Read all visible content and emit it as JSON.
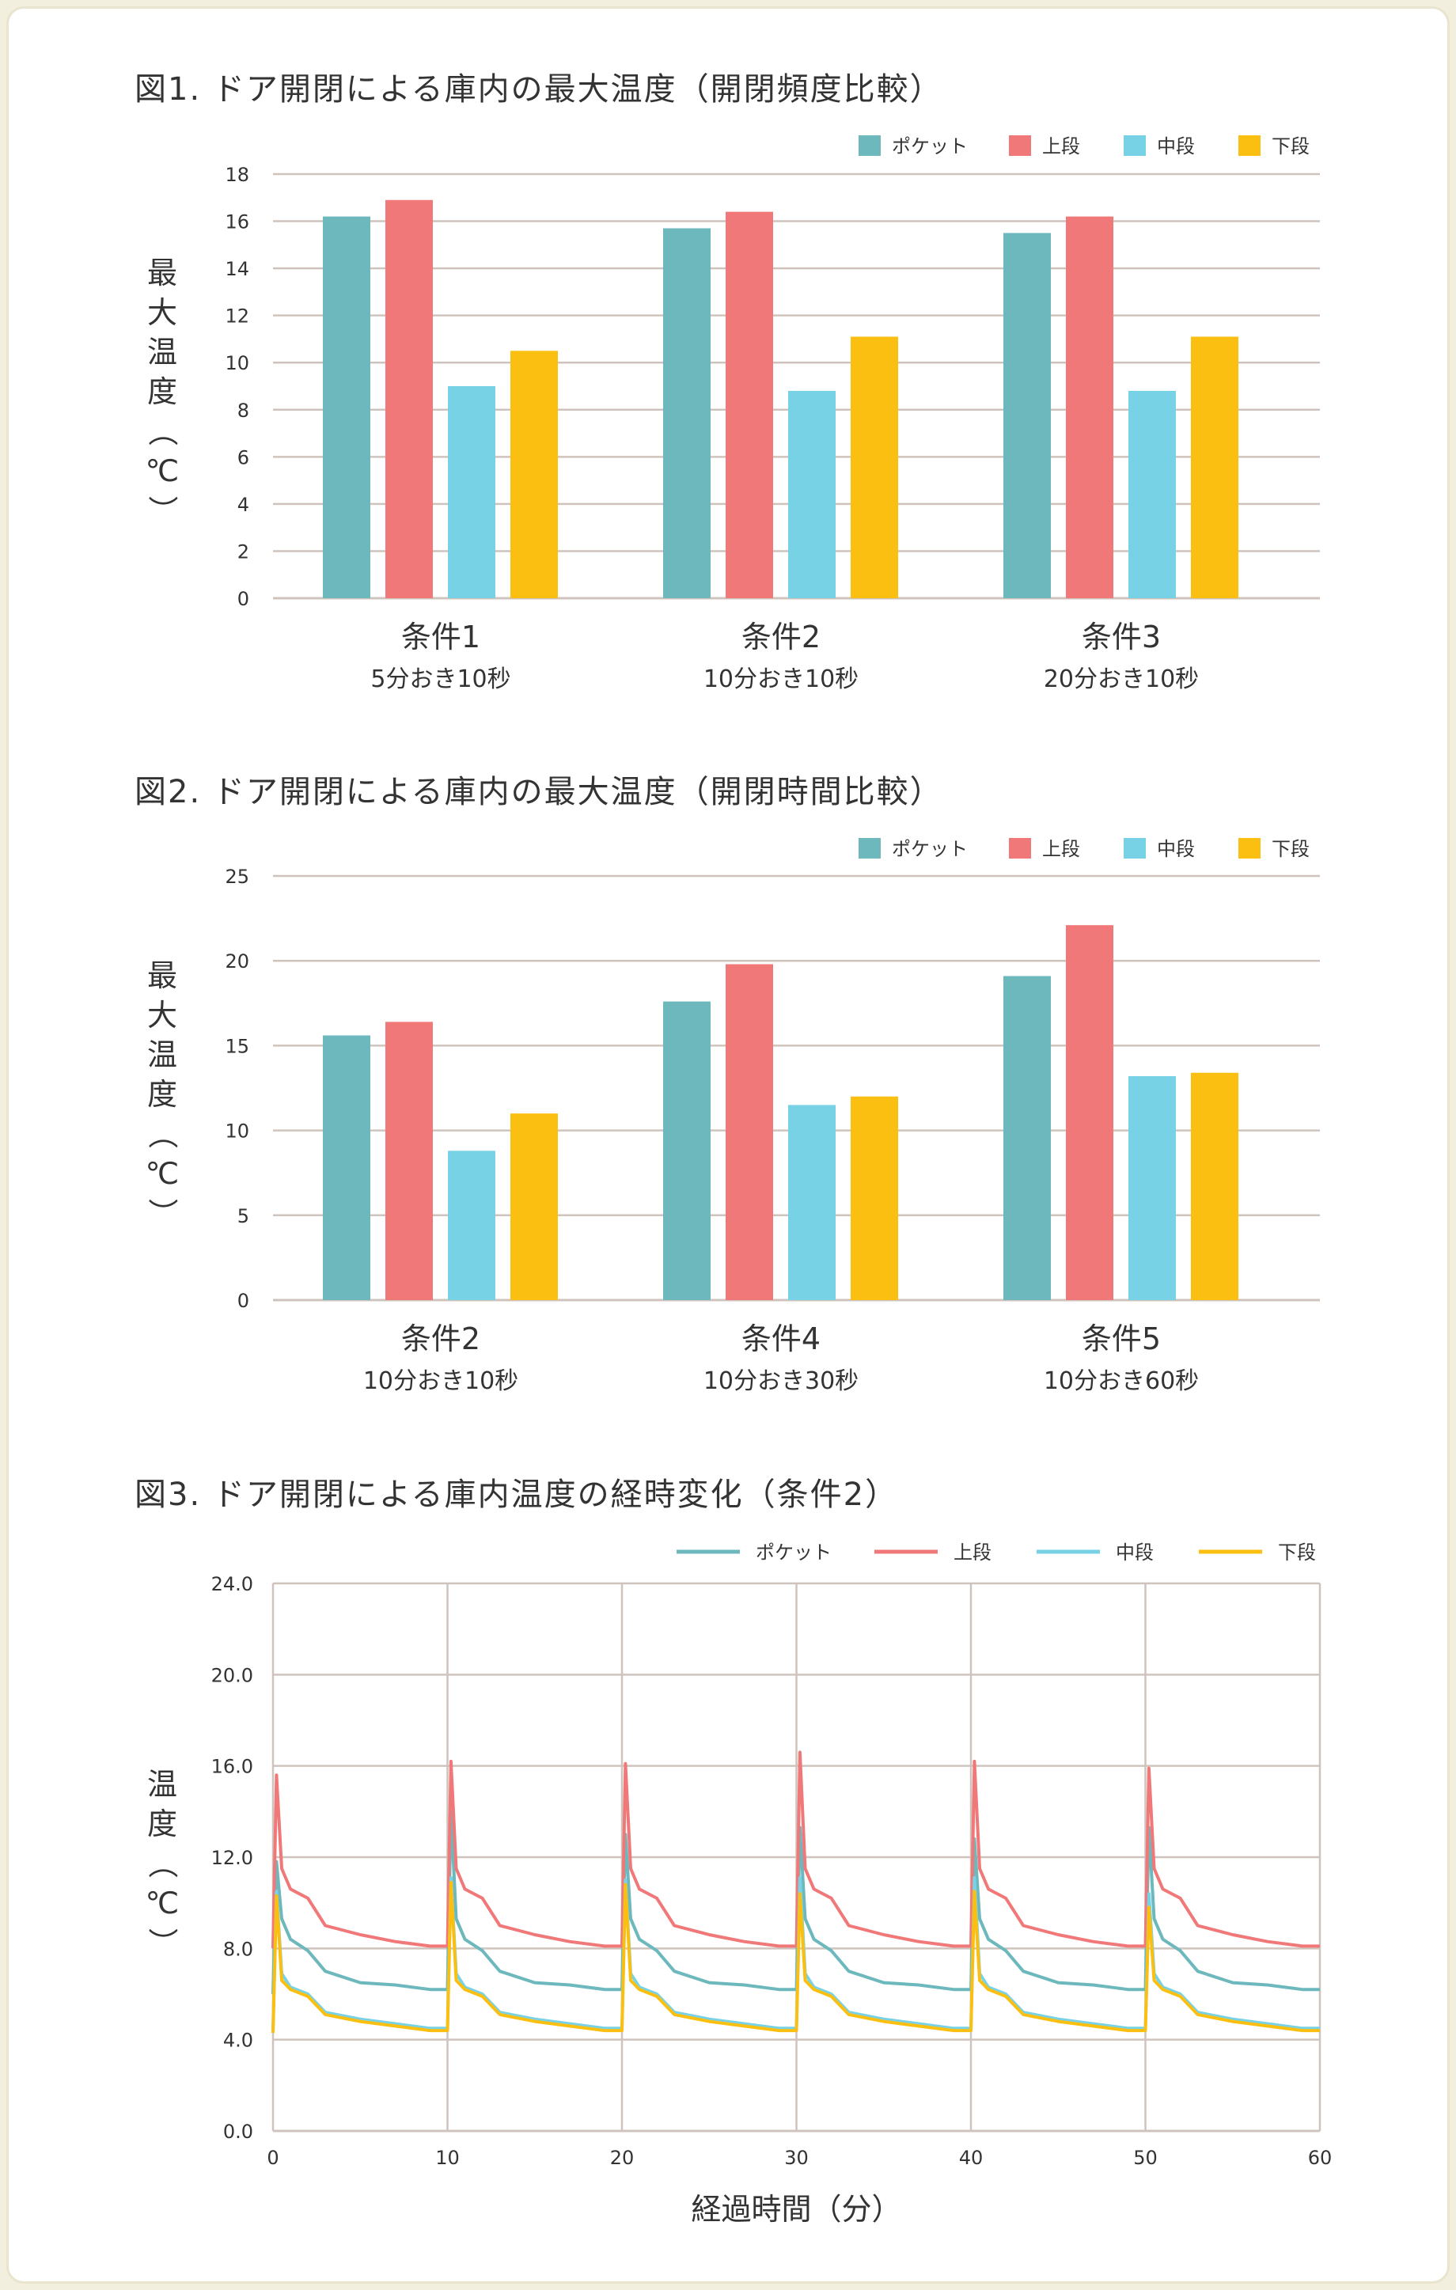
{
  "colors": {
    "pocket": "#6cb8bc",
    "upper": "#f07878",
    "middle": "#78d2e6",
    "lower": "#fbbf12",
    "grid": "#cfc4bd"
  },
  "legend": [
    "ポケット",
    "上段",
    "中段",
    "下段"
  ],
  "charts": [
    {
      "title": "図1. ドア開閉による庫内の最大温度（開閉頻度比較）",
      "ylabel": "最大温度（℃）",
      "chart_data": {
        "type": "bar",
        "categories": [
          [
            "条件1",
            "5分おき10秒"
          ],
          [
            "条件2",
            "10分おき10秒"
          ],
          [
            "条件3",
            "20分おき10秒"
          ]
        ],
        "series": [
          {
            "name": "ポケット",
            "values": [
              16.2,
              15.7,
              15.5
            ]
          },
          {
            "name": "上段",
            "values": [
              16.9,
              16.4,
              16.2
            ]
          },
          {
            "name": "中段",
            "values": [
              9.0,
              8.8,
              8.8
            ]
          },
          {
            "name": "下段",
            "values": [
              10.5,
              11.1,
              11.1
            ]
          }
        ],
        "ylim": [
          0,
          18
        ],
        "yticks": [
          "0",
          "2",
          "4",
          "6",
          "8",
          "10",
          "12",
          "14",
          "16",
          "18"
        ]
      }
    },
    {
      "title": "図2. ドア開閉による庫内の最大温度（開閉時間比較）",
      "ylabel": "最大温度（℃）",
      "chart_data": {
        "type": "bar",
        "categories": [
          [
            "条件2",
            "10分おき10秒"
          ],
          [
            "条件4",
            "10分おき30秒"
          ],
          [
            "条件5",
            "10分おき60秒"
          ]
        ],
        "series": [
          {
            "name": "ポケット",
            "values": [
              15.6,
              17.6,
              19.1
            ]
          },
          {
            "name": "上段",
            "values": [
              16.4,
              19.8,
              22.1
            ]
          },
          {
            "name": "中段",
            "values": [
              8.8,
              11.5,
              13.2
            ]
          },
          {
            "name": "下段",
            "values": [
              11.0,
              12.0,
              13.4
            ]
          }
        ],
        "ylim": [
          0,
          25
        ],
        "yticks": [
          "0",
          "5",
          "10",
          "15",
          "20",
          "25"
        ]
      }
    },
    {
      "title": "図3. ドア開閉による庫内温度の経時変化（条件2）",
      "ylabel": "温度（℃）",
      "xlabel": "経過時間（分）",
      "chart_data": {
        "type": "line",
        "xlim": [
          0,
          60
        ],
        "ylim": [
          0,
          24
        ],
        "xticks": [
          "0",
          "10",
          "20",
          "30",
          "40",
          "50",
          "60"
        ],
        "yticks": [
          "0.0",
          "4.0",
          "8.0",
          "12.0",
          "16.0",
          "20.0",
          "24.0"
        ],
        "series": [
          {
            "name": "ポケット",
            "peaks": [
              11.8,
              14.0,
              13.0,
              13.3,
              12.8,
              13.3
            ],
            "profile": [
              [
                0.5,
                9.3
              ],
              [
                1,
                8.4
              ],
              [
                2,
                7.9
              ],
              [
                3,
                7.0
              ],
              [
                5,
                6.5
              ],
              [
                7,
                6.4
              ],
              [
                9,
                6.2
              ]
            ],
            "start": 6.0
          },
          {
            "name": "上段",
            "peaks": [
              15.6,
              16.2,
              16.1,
              16.6,
              16.2,
              15.9
            ],
            "profile": [
              [
                0.5,
                11.5
              ],
              [
                1,
                10.6
              ],
              [
                2,
                10.2
              ],
              [
                3,
                9.0
              ],
              [
                5,
                8.6
              ],
              [
                7,
                8.3
              ],
              [
                9,
                8.1
              ]
            ],
            "start": 8.0
          },
          {
            "name": "中段",
            "peaks": [
              10.5,
              11.1,
              11.0,
              11.1,
              11.1,
              10.4
            ],
            "profile": [
              [
                0.5,
                6.9
              ],
              [
                1,
                6.3
              ],
              [
                2,
                6.0
              ],
              [
                3,
                5.2
              ],
              [
                5,
                4.9
              ],
              [
                7,
                4.7
              ],
              [
                9,
                4.5
              ]
            ],
            "start": 4.4
          },
          {
            "name": "下段",
            "peaks": [
              10.3,
              10.9,
              10.8,
              10.4,
              10.5,
              9.8
            ],
            "profile": [
              [
                0.5,
                6.6
              ],
              [
                1,
                6.2
              ],
              [
                2,
                5.9
              ],
              [
                3,
                5.1
              ],
              [
                5,
                4.8
              ],
              [
                7,
                4.6
              ],
              [
                9,
                4.4
              ]
            ],
            "start": 4.3
          }
        ]
      }
    }
  ]
}
